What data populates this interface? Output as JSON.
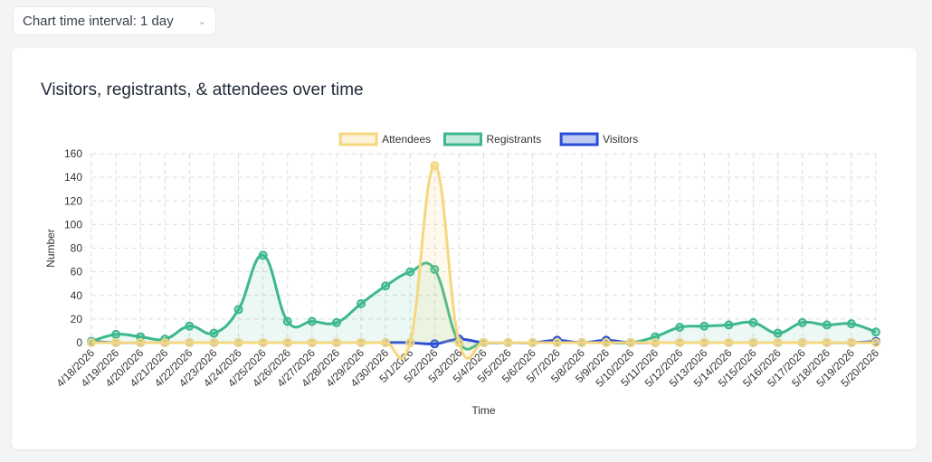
{
  "controls": {
    "interval_label": "Chart time interval: 1 day",
    "chevron_icon": "chevron-down-icon"
  },
  "card": {
    "title": "Visitors, registrants, & attendees over time"
  },
  "chart_data": {
    "type": "line",
    "title": "Visitors, registrants, & attendees over time",
    "xlabel": "Time",
    "ylabel": "Number",
    "ylim": [
      0,
      160
    ],
    "yticks": [
      0,
      20,
      40,
      60,
      80,
      100,
      120,
      140,
      160
    ],
    "grid": true,
    "legend_position": "top-center",
    "categories": [
      "4/18/2026",
      "4/19/2026",
      "4/20/2026",
      "4/21/2026",
      "4/22/2026",
      "4/23/2026",
      "4/24/2026",
      "4/25/2026",
      "4/26/2026",
      "4/27/2026",
      "4/28/2026",
      "4/29/2026",
      "4/30/2026",
      "5/1/2026",
      "5/2/2026",
      "5/3/2026",
      "5/4/2026",
      "5/5/2026",
      "5/6/2026",
      "5/7/2026",
      "5/8/2026",
      "5/9/2026",
      "5/10/2026",
      "5/11/2026",
      "5/12/2026",
      "5/13/2026",
      "5/14/2026",
      "5/15/2026",
      "5/16/2026",
      "5/17/2026",
      "5/18/2026",
      "5/19/2026",
      "5/20/2026"
    ],
    "series": [
      {
        "name": "Attendees",
        "color": "#f5d77f",
        "fill": "rgba(245,215,127,0.15)",
        "values": [
          0,
          0,
          0,
          0,
          0,
          0,
          0,
          0,
          0,
          0,
          0,
          0,
          0,
          0,
          150,
          0,
          0,
          0,
          0,
          0,
          0,
          0,
          0,
          0,
          0,
          0,
          0,
          0,
          0,
          0,
          0,
          0,
          0
        ]
      },
      {
        "name": "Registrants",
        "color": "#3db88c",
        "fill": "rgba(61,184,140,0.10)",
        "values": [
          1,
          7,
          5,
          3,
          14,
          8,
          28,
          74,
          18,
          18,
          17,
          33,
          48,
          60,
          62,
          0,
          0,
          0,
          0,
          0,
          0,
          0,
          0,
          5,
          13,
          14,
          15,
          17,
          8,
          17,
          15,
          16,
          9
        ]
      },
      {
        "name": "Visitors",
        "color": "#2a4fd6",
        "fill": "rgba(42,79,214,0.05)",
        "values": [
          1,
          0,
          0,
          0,
          0,
          0,
          0,
          0,
          0,
          0,
          0,
          0,
          0,
          0,
          -1,
          3,
          0,
          0,
          0,
          2,
          0,
          2,
          0,
          0,
          0,
          0,
          0,
          0,
          0,
          0,
          0,
          0,
          1
        ]
      }
    ]
  }
}
